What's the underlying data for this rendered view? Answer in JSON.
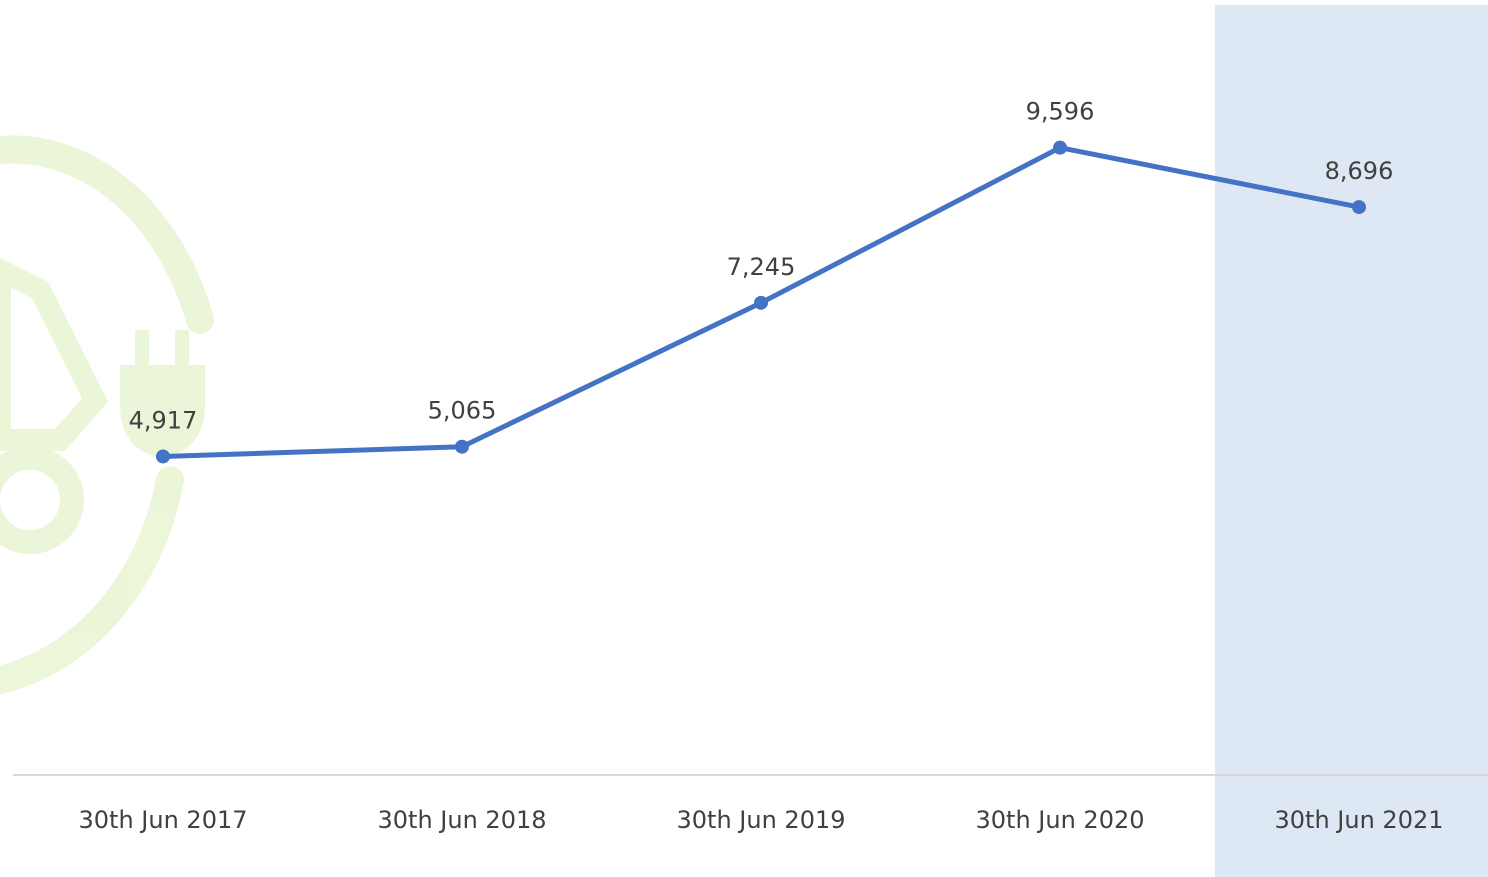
{
  "colors": {
    "background": "#ffffff",
    "line": "#4472c4",
    "highlight_band": "#dde8f4",
    "axis": "#d9d9d9",
    "text": "#404040",
    "watermark": "#a9d54f"
  },
  "watermark": {
    "icon": "electric-tractor-plug-icon"
  },
  "chart_data": {
    "type": "line",
    "categories": [
      "30th Jun 2017",
      "30th Jun 2018",
      "30th Jun 2019",
      "30th Jun 2020",
      "30th Jun 2021"
    ],
    "values": [
      4917,
      5065,
      7245,
      9596,
      8696
    ],
    "data_labels": [
      "4,917",
      "5,065",
      "7,245",
      "9,596",
      "8,696"
    ],
    "highlighted_category": "30th Jun 2021",
    "title": "",
    "xlabel": "",
    "ylabel": "",
    "ylim": [
      0,
      11500
    ],
    "grid": false,
    "legend": "none"
  }
}
